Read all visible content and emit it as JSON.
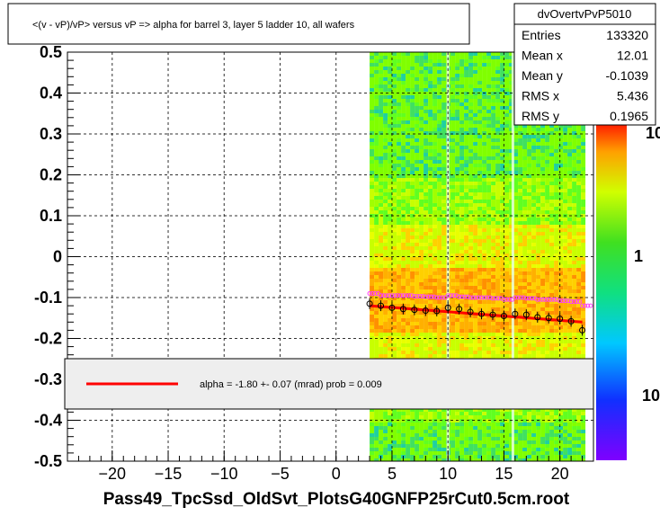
{
  "title": "<(v - vP)/vP> versus  vP => alpha for barrel 3, layer 5 ladder 10, all wafers",
  "footer": "Pass49_TpcSsd_OldSvt_PlotsG40GNFP25rCut0.5cm.root",
  "stats": {
    "name": "dvOvertvPvP5010",
    "rows": [
      {
        "label": "Entries",
        "value": "133320"
      },
      {
        "label": "Mean x",
        "value": "12.01"
      },
      {
        "label": "Mean y",
        "value": "-0.1039"
      },
      {
        "label": "RMS x",
        "value": "5.436"
      },
      {
        "label": "RMS y",
        "value": "0.1965"
      }
    ]
  },
  "legend": {
    "text": "alpha =   -1.80 +-  0.07 (mrad) prob = 0.009",
    "line_color": "#ff0000"
  },
  "palette_labels": [
    "10",
    "1",
    "10"
  ],
  "chart_data": {
    "type": "heatmap",
    "xlim": [
      -24,
      23
    ],
    "ylim": [
      -0.5,
      0.5
    ],
    "x_ticks": [
      -20,
      -15,
      -10,
      -5,
      0,
      5,
      10,
      15,
      20
    ],
    "x_tick_labels": [
      "−20",
      "−15",
      "−10",
      "−5",
      "0",
      "5",
      "10",
      "15",
      "20"
    ],
    "y_ticks": [
      0.5,
      0.4,
      0.3,
      0.2,
      0.1,
      0,
      -0.1,
      -0.2,
      -0.3,
      -0.4,
      -0.5
    ],
    "y_tick_labels": [
      "0.5",
      "0.4",
      "0.3",
      "0.2",
      "0.1",
      "0",
      "-0.1",
      "-0.2",
      "-0.3",
      "-0.4",
      "-0.5"
    ],
    "grid": true,
    "band_x": [
      3,
      22
    ],
    "gaps_x": [
      10,
      15.8
    ],
    "profile": {
      "x": [
        3,
        4,
        5,
        6,
        7,
        8,
        9,
        10,
        11,
        12,
        13,
        14,
        15,
        16,
        17,
        18,
        19,
        20,
        21,
        22
      ],
      "y": [
        -0.115,
        -0.12,
        -0.125,
        -0.128,
        -0.13,
        -0.132,
        -0.133,
        -0.125,
        -0.128,
        -0.135,
        -0.14,
        -0.142,
        -0.145,
        -0.14,
        -0.142,
        -0.148,
        -0.15,
        -0.152,
        -0.158,
        -0.18
      ]
    },
    "fit": {
      "x": [
        3,
        22
      ],
      "y": [
        -0.12,
        -0.16
      ]
    },
    "mean_band": {
      "x": [
        3,
        4,
        5,
        6,
        7,
        8,
        9,
        10,
        11,
        12,
        13,
        14,
        15,
        16,
        17,
        18,
        19,
        20,
        21,
        22
      ],
      "y": [
        -0.09,
        -0.095,
        -0.095,
        -0.095,
        -0.097,
        -0.098,
        -0.1,
        -0.095,
        -0.098,
        -0.1,
        -0.1,
        -0.102,
        -0.105,
        -0.1,
        -0.102,
        -0.105,
        -0.105,
        -0.108,
        -0.11,
        -0.12
      ]
    }
  }
}
